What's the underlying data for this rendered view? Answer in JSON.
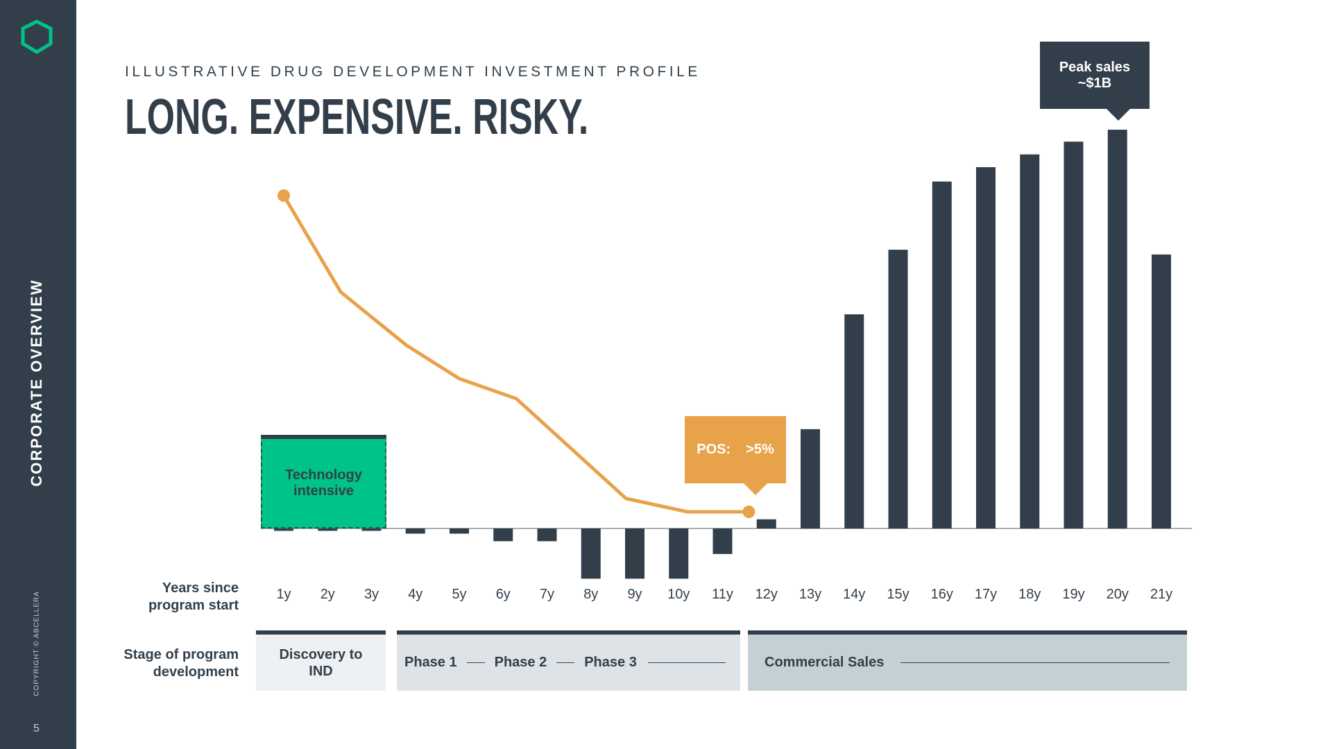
{
  "sidebar": {
    "section": "CORPORATE OVERVIEW",
    "copyright": "COPYRIGHT © ABCELLERA",
    "page": "5"
  },
  "chart_data": {
    "type": "bar",
    "subtitle": "ILLUSTRATIVE DRUG DEVELOPMENT INVESTMENT PROFILE",
    "title": "LONG. EXPENSIVE. RISKY.",
    "categories": [
      "1y",
      "2y",
      "3y",
      "4y",
      "5y",
      "6y",
      "7y",
      "8y",
      "9y",
      "10y",
      "11y",
      "12y",
      "13y",
      "14y",
      "15y",
      "16y",
      "17y",
      "18y",
      "19y",
      "20y",
      "21y"
    ],
    "values": [
      -6,
      -6,
      -6,
      -13,
      -13,
      -32,
      -32,
      -126,
      -126,
      -126,
      -64,
      23,
      249,
      537,
      699,
      870,
      906,
      938,
      970,
      1000,
      687
    ],
    "color": "#323f4a",
    "line": {
      "x": [
        1,
        2.3,
        3.8,
        5,
        6.3,
        8.8,
        10.2,
        11.6
      ],
      "values": [
        100,
        71,
        55,
        45,
        39,
        9,
        5,
        5
      ],
      "color": "#e8a24a"
    },
    "annotations": {
      "technology": "Technology\nintensive",
      "pos_label": "POS:",
      "pos_value": ">5%",
      "peak": "Peak sales\n~$1B"
    },
    "x_axis_label": "Years since\nprogram start"
  },
  "stages": {
    "label": "Stage of program\ndevelopment",
    "discovery": "Discovery to\nIND",
    "phase1": "Phase 1",
    "phase2": "Phase 2",
    "phase3": "Phase 3",
    "commercial": "Commercial Sales"
  }
}
